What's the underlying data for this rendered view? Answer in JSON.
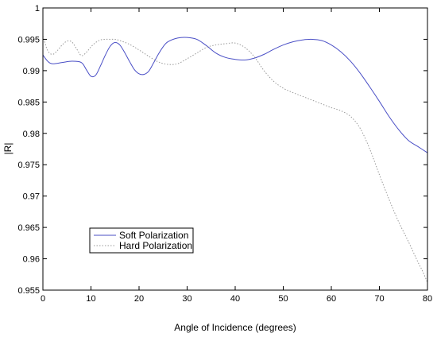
{
  "chart_data": {
    "type": "line",
    "title": "",
    "xlabel": "Angle of Incidence (degrees)",
    "ylabel": "|R|",
    "xlim": [
      0,
      80
    ],
    "ylim": [
      0.955,
      1
    ],
    "x_ticks": [
      0,
      10,
      20,
      30,
      40,
      50,
      60,
      70,
      80
    ],
    "x_tick_labels": [
      "0",
      "10",
      "20",
      "30",
      "40",
      "50",
      "60",
      "70",
      "80"
    ],
    "y_ticks": [
      0.955,
      0.96,
      0.965,
      0.97,
      0.975,
      0.98,
      0.985,
      0.99,
      0.995,
      1
    ],
    "y_tick_labels": [
      "0.955",
      "0.96",
      "0.965",
      "0.97",
      "0.975",
      "0.98",
      "0.985",
      "0.99",
      "0.995",
      "1"
    ],
    "grid": false,
    "legend": {
      "placement": "lower-left",
      "entries": [
        "Soft Polarization",
        "Hard Polarization"
      ]
    },
    "series": [
      {
        "name": "Soft Polarization",
        "color": "#4a4fc6",
        "style": "solid",
        "x": [
          0,
          1,
          2,
          4,
          6,
          8,
          9,
          10,
          11,
          12,
          13,
          14,
          15,
          16,
          17,
          18,
          19,
          20,
          21,
          22,
          23,
          24,
          25,
          26,
          28,
          30,
          32,
          34,
          36,
          38,
          40,
          42,
          44,
          46,
          48,
          50,
          52,
          54,
          56,
          58,
          60,
          62,
          64,
          66,
          68,
          70,
          72,
          74,
          76,
          78,
          80
        ],
        "y": [
          0.9925,
          0.9915,
          0.9911,
          0.9913,
          0.9915,
          0.9913,
          0.9902,
          0.9891,
          0.9893,
          0.9908,
          0.9925,
          0.9939,
          0.9945,
          0.9941,
          0.9929,
          0.9915,
          0.9902,
          0.9895,
          0.9894,
          0.9899,
          0.9912,
          0.9926,
          0.9938,
          0.9946,
          0.9952,
          0.9953,
          0.995,
          0.994,
          0.9928,
          0.9921,
          0.9918,
          0.9917,
          0.992,
          0.9926,
          0.9934,
          0.9941,
          0.9946,
          0.9949,
          0.995,
          0.9948,
          0.9941,
          0.993,
          0.9915,
          0.9896,
          0.9874,
          0.9851,
          0.9827,
          0.9806,
          0.9789,
          0.9779,
          0.9769
        ]
      },
      {
        "name": "Hard Polarization",
        "color": "#9a9a9a",
        "style": "dotted",
        "x": [
          0,
          1,
          2,
          3,
          4,
          5,
          6,
          7,
          8,
          9,
          10,
          11,
          12,
          13,
          14,
          15,
          16,
          18,
          20,
          22,
          24,
          26,
          28,
          30,
          32,
          34,
          36,
          38,
          40,
          42,
          44,
          46,
          48,
          50,
          52,
          54,
          56,
          58,
          60,
          62,
          64,
          66,
          68,
          70,
          72,
          74,
          76,
          78,
          79,
          80
        ],
        "y": [
          0.9955,
          0.9932,
          0.9926,
          0.9932,
          0.9941,
          0.9947,
          0.9946,
          0.9935,
          0.9924,
          0.9929,
          0.9938,
          0.9945,
          0.9949,
          0.995,
          0.995,
          0.995,
          0.9948,
          0.9942,
          0.9933,
          0.9923,
          0.9914,
          0.991,
          0.9911,
          0.9919,
          0.9928,
          0.9937,
          0.9941,
          0.9943,
          0.9944,
          0.9937,
          0.9922,
          0.99,
          0.9883,
          0.9872,
          0.9865,
          0.9859,
          0.9853,
          0.9847,
          0.9841,
          0.9836,
          0.9827,
          0.9808,
          0.9775,
          0.9734,
          0.9695,
          0.9659,
          0.9628,
          0.9595,
          0.958,
          0.9562
        ]
      }
    ]
  }
}
